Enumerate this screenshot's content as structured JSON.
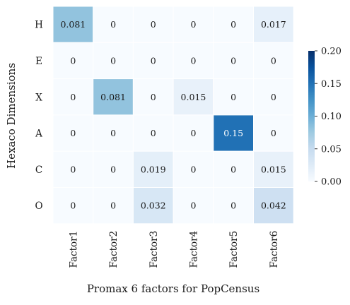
{
  "chart_data": {
    "type": "heatmap",
    "xlabel": "Promax 6 factors for PopCensus",
    "ylabel": "Hexaco Dimensions",
    "x_categories": [
      "Factor1",
      "Factor2",
      "Factor3",
      "Factor4",
      "Factor5",
      "Factor6"
    ],
    "y_categories": [
      "H",
      "E",
      "X",
      "A",
      "C",
      "O"
    ],
    "values": [
      [
        0.081,
        0,
        0,
        0,
        0,
        0.017
      ],
      [
        0,
        0,
        0,
        0,
        0,
        0
      ],
      [
        0,
        0.081,
        0,
        0.015,
        0,
        0
      ],
      [
        0,
        0,
        0,
        0,
        0.15,
        0
      ],
      [
        0,
        0,
        0.019,
        0,
        0,
        0.015
      ],
      [
        0,
        0,
        0.032,
        0,
        0,
        0.042
      ]
    ],
    "value_labels": [
      [
        "0.081",
        "0",
        "0",
        "0",
        "0",
        "0.017"
      ],
      [
        "0",
        "0",
        "0",
        "0",
        "0",
        "0"
      ],
      [
        "0",
        "0.081",
        "0",
        "0.015",
        "0",
        "0"
      ],
      [
        "0",
        "0",
        "0",
        "0",
        "0.15",
        "0"
      ],
      [
        "0",
        "0",
        "0.019",
        "0",
        "0",
        "0.015"
      ],
      [
        "0",
        "0",
        "0.032",
        "0",
        "0",
        "0.042"
      ]
    ],
    "colorbar": {
      "range": [
        0,
        0.2
      ],
      "ticks": [
        0,
        0.05,
        0.1,
        0.15,
        0.2
      ],
      "tick_labels": [
        "0.00",
        "0.05",
        "0.10",
        "0.15",
        "0.20"
      ],
      "colormap": "Blues",
      "placement": "right"
    },
    "colors": {
      "cell_border": "#ffffff",
      "text_on_light": "#1a1a1a",
      "text_on_dark": "#ffffff"
    }
  }
}
